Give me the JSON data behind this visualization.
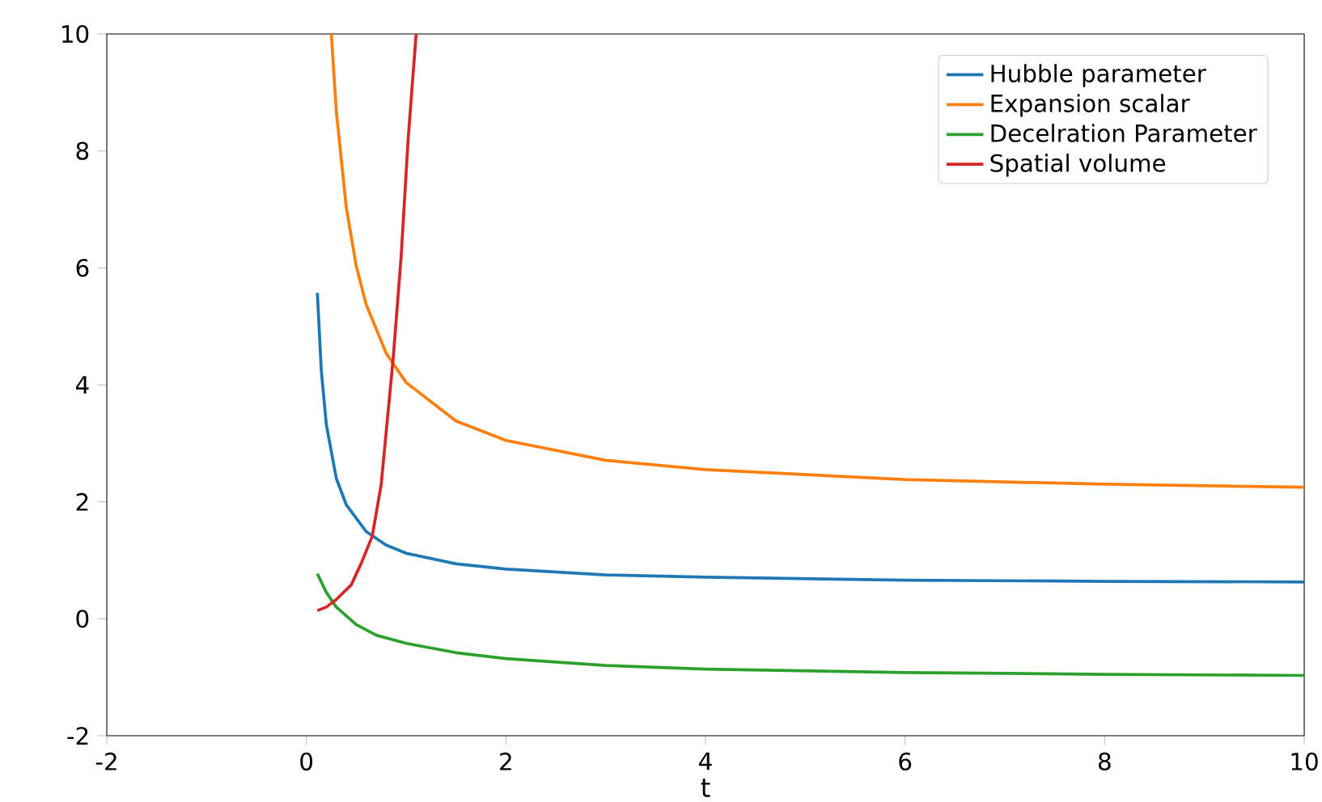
{
  "chart_data": {
    "type": "line",
    "xlabel": "t",
    "xlim": [
      -2,
      10
    ],
    "ylim": [
      -2,
      10
    ],
    "xticks": [
      -2,
      0,
      2,
      4,
      6,
      8,
      10
    ],
    "yticks": [
      -2,
      0,
      2,
      4,
      6,
      8,
      10
    ],
    "grid": false,
    "legend": "top right",
    "line_style": "solid",
    "series": [
      {
        "name": "Hubble parameter",
        "color": "#1f77b4",
        "x": [
          0.11,
          0.15,
          0.2,
          0.3,
          0.4,
          0.6,
          0.8,
          1,
          1.5,
          2,
          3,
          4,
          6,
          8,
          10
        ],
        "values": [
          5.57,
          4.24,
          3.32,
          2.4,
          1.95,
          1.49,
          1.26,
          1.12,
          0.94,
          0.85,
          0.75,
          0.71,
          0.66,
          0.64,
          0.63
        ]
      },
      {
        "name": "Expansion scalar",
        "color": "#ff7f0e",
        "x": [
          0.25,
          0.3,
          0.4,
          0.5,
          0.6,
          0.8,
          1,
          1.5,
          2,
          3,
          4,
          6,
          8,
          10
        ],
        "values": [
          10.0,
          8.68,
          7.03,
          6.03,
          5.37,
          4.54,
          4.04,
          3.38,
          3.05,
          2.71,
          2.55,
          2.38,
          2.3,
          2.25
        ]
      },
      {
        "name": "Decelration Parameter",
        "color": "#2ca02c",
        "x": [
          0.11,
          0.2,
          0.3,
          0.5,
          0.7,
          1,
          1.5,
          2,
          3,
          4,
          6,
          8,
          10
        ],
        "values": [
          0.77,
          0.45,
          0.2,
          -0.1,
          -0.28,
          -0.42,
          -0.58,
          -0.68,
          -0.8,
          -0.86,
          -0.92,
          -0.95,
          -0.97
        ]
      },
      {
        "name": "Spatial volume",
        "color": "#d62728",
        "x": [
          0.11,
          0.2,
          0.3,
          0.45,
          0.55,
          0.66,
          0.75,
          0.87,
          0.95,
          1.02,
          1.1
        ],
        "values": [
          0.14,
          0.2,
          0.33,
          0.58,
          0.95,
          1.41,
          2.3,
          4.45,
          6.2,
          8.2,
          10
        ]
      }
    ]
  }
}
